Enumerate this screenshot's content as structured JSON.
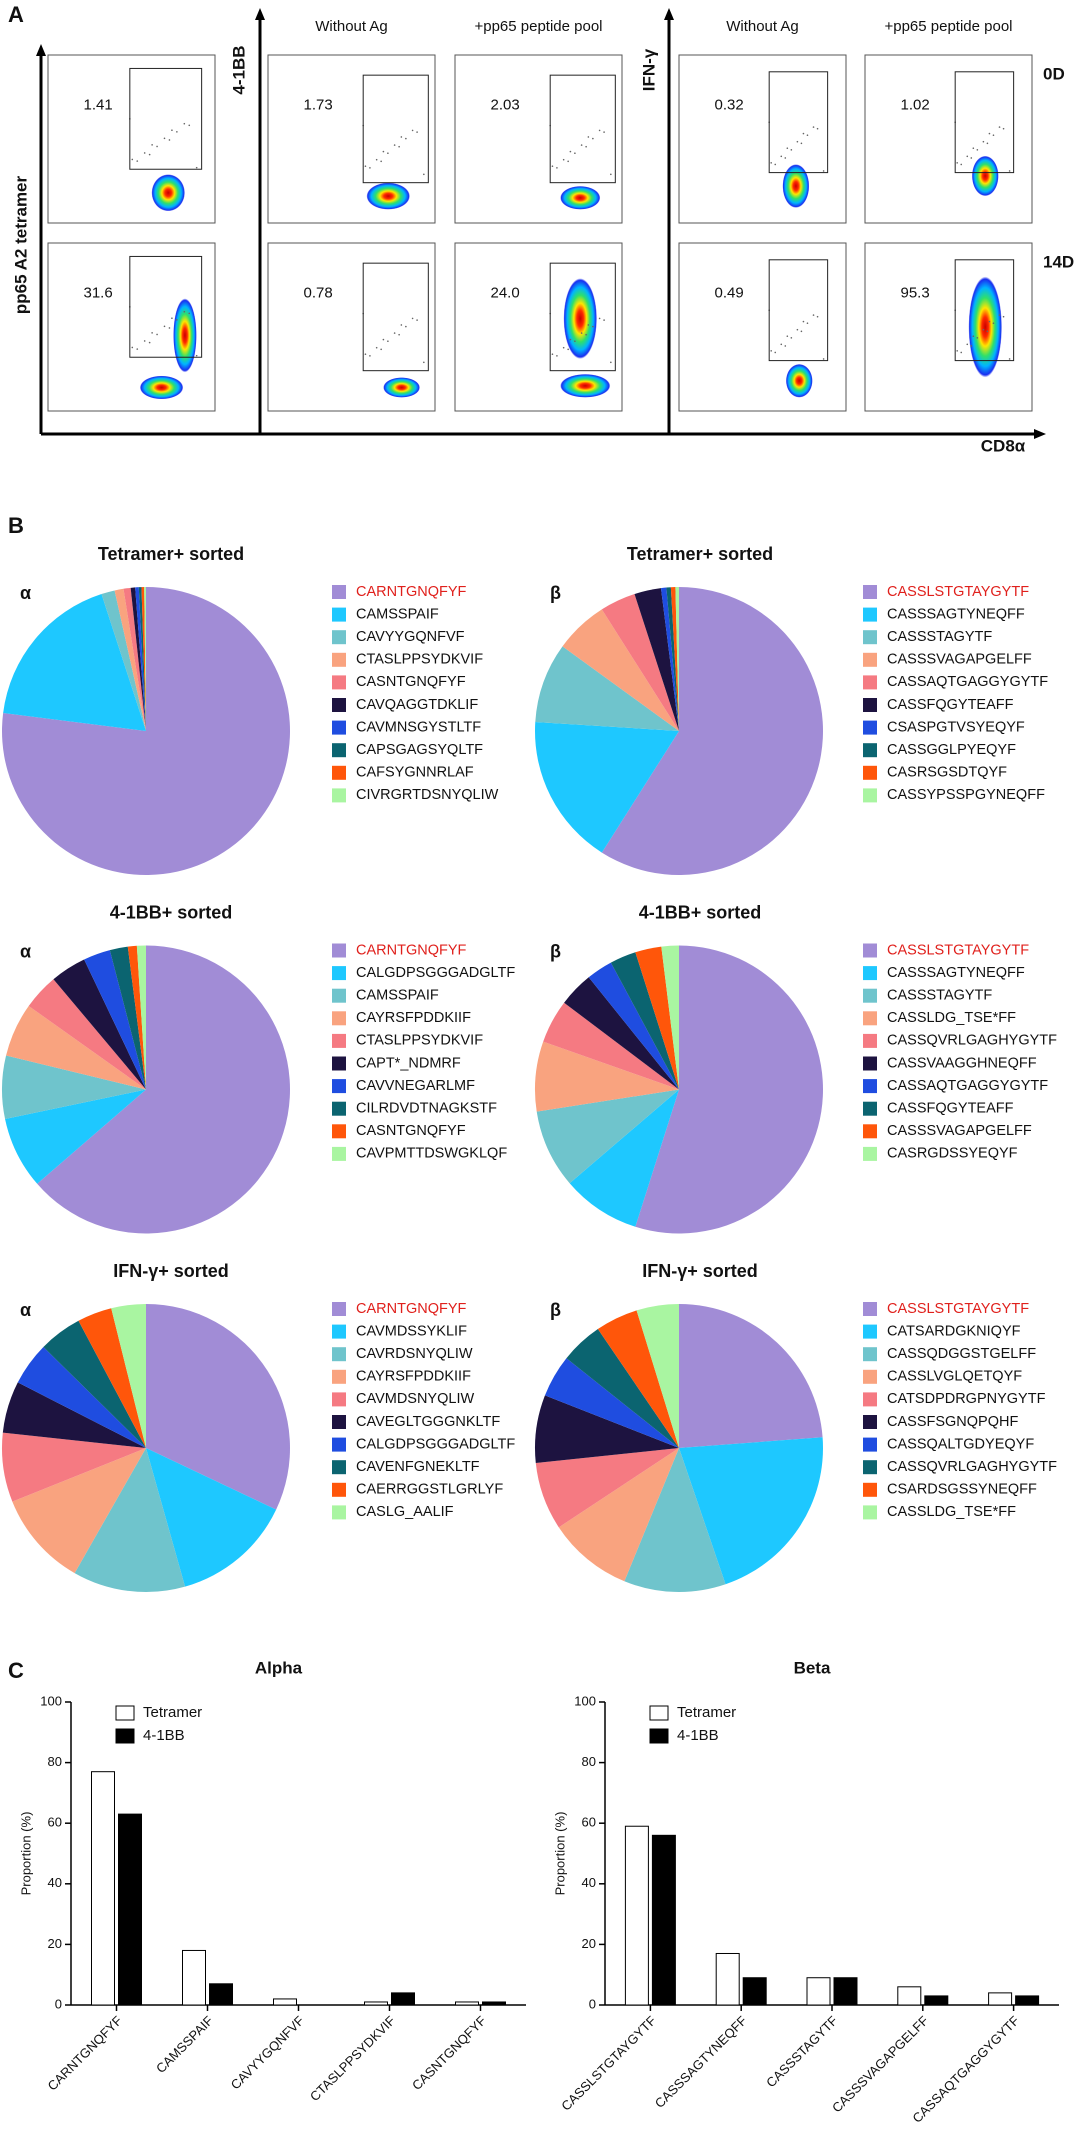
{
  "panel_a": {
    "label": "A",
    "y_axis_1": "pp65 A2 tetramer",
    "y_axis_2": "4-1BB",
    "y_axis_3": "IFN-γ",
    "x_axis": "CD8α",
    "column_headers": [
      "Without Ag",
      "+pp65 peptide pool",
      "Without Ag",
      "+pp65 peptide pool"
    ],
    "row_labels": [
      "0D",
      "14D"
    ],
    "gates": [
      [
        "1.41",
        "1.73",
        "2.03",
        "0.32",
        "1.02"
      ],
      [
        "31.6",
        "0.78",
        "24.0",
        "0.49",
        "95.3"
      ]
    ]
  },
  "panel_b": {
    "label": "B"
  },
  "panel_c": {
    "label": "C"
  },
  "chart_data": [
    {
      "type": "pie",
      "title": "Tetramer+ sorted",
      "subtitle": "α",
      "categories": [
        "CARNTGNQFYF",
        "CAMSSPAIF",
        "CAVYYGQNFVF",
        "CTASLPPSYDKVIF",
        "CASNTGNQFYF",
        "CAVQAGGTDKLIF",
        "CAVMNSGYSTLTF",
        "CAPSGAGSYQLTF",
        "CAFSYGNNRLAF",
        "CIVRGRTDSNYQLIW"
      ],
      "values": [
        77,
        18,
        1.5,
        1,
        0.8,
        0.5,
        0.4,
        0.3,
        0.3,
        0.2
      ],
      "colors": [
        "#a18cd6",
        "#1ec8ff",
        "#6fc4cc",
        "#f9a37f",
        "#f57a82",
        "#1d1340",
        "#1f4de0",
        "#0b6470",
        "#ff560a",
        "#a9f5a1"
      ]
    },
    {
      "type": "pie",
      "title": "Tetramer+ sorted",
      "subtitle": "β",
      "categories": [
        "CASSLSTGTAYGYTF",
        "CASSSAGTYNEQFF",
        "CASSSTAGYTF",
        "CASSSVAGAPGELFF",
        "CASSAQTGAGGYGYTF",
        "CASSFQGYTEAFF",
        "CSASPGTVSYEQYF",
        "CASSGGLPYEQYF",
        "CASRSGSDTQYF",
        "CASSYPSSPGYNEQFF"
      ],
      "values": [
        59,
        17,
        9,
        6,
        4,
        3,
        0.6,
        0.5,
        0.5,
        0.4
      ],
      "colors": [
        "#a18cd6",
        "#1ec8ff",
        "#6fc4cc",
        "#f9a37f",
        "#f57a82",
        "#1d1340",
        "#1f4de0",
        "#0b6470",
        "#ff560a",
        "#a9f5a1"
      ]
    },
    {
      "type": "pie",
      "title": "4-1BB+ sorted",
      "subtitle": "α",
      "categories": [
        "CARNTGNQFYF",
        "CALGDPSGGGADGLTF",
        "CAMSSPAIF",
        "CAYRSFPDDKIIF",
        "CTASLPPSYDKVIF",
        "CAPT*_NDMRF",
        "CAVVNEGARLMF",
        "CILRDVDTNAGKSTF",
        "CASNTGNQFYF",
        "CAVPMTTDSWGKLQF"
      ],
      "values": [
        63,
        8,
        7,
        6,
        4,
        4,
        3,
        2,
        1,
        1
      ],
      "colors": [
        "#a18cd6",
        "#1ec8ff",
        "#6fc4cc",
        "#f9a37f",
        "#f57a82",
        "#1d1340",
        "#1f4de0",
        "#0b6470",
        "#ff560a",
        "#a9f5a1"
      ]
    },
    {
      "type": "pie",
      "title": "4-1BB+ sorted",
      "subtitle": "β",
      "categories": [
        "CASSLSTGTAYGYTF",
        "CASSSAGTYNEQFF",
        "CASSSTAGYTF",
        "CASSLDG_TSE*FF",
        "CASSQVRLGAGHYGYTF",
        "CASSVAAGGHNEQFF",
        "CASSAQTGAGGYGYTF",
        "CASSFQGYTEAFF",
        "CASSSVAGAPGELFF",
        "CASRGDSSYEQYF"
      ],
      "values": [
        56,
        9,
        9,
        8,
        5,
        4,
        3,
        3,
        3,
        2
      ],
      "colors": [
        "#a18cd6",
        "#1ec8ff",
        "#6fc4cc",
        "#f9a37f",
        "#f57a82",
        "#1d1340",
        "#1f4de0",
        "#0b6470",
        "#ff560a",
        "#a9f5a1"
      ]
    },
    {
      "type": "pie",
      "title": "IFN-γ+ sorted",
      "subtitle": "α",
      "categories": [
        "CARNTGNQFYF",
        "CAVMDSSYKLIF",
        "CAVRDSNYQLIW",
        "CAYRSFPDDKIIF",
        "CAVMDSNYQLIW",
        "CAVEGLTGGGNKLTF",
        "CALGDPSGGGADGLTF",
        "CAVENFGNEKLTF",
        "CAERRGGSTLGRLYF",
        "CASLG_AALIF"
      ],
      "values": [
        33,
        14,
        13,
        11,
        8,
        6,
        5,
        5,
        4,
        4
      ],
      "colors": [
        "#a18cd6",
        "#1ec8ff",
        "#6fc4cc",
        "#f9a37f",
        "#f57a82",
        "#1d1340",
        "#1f4de0",
        "#0b6470",
        "#ff560a",
        "#a9f5a1"
      ]
    },
    {
      "type": "pie",
      "title": "IFN-γ+ sorted",
      "subtitle": "β",
      "categories": [
        "CASSLSTGTAYGYTF",
        "CATSARDGKNIQYF",
        "CASSQDGGSTGELFF",
        "CASSLVGLQETQYF",
        "CATSDPDRGPNYGYTF",
        "CASSFSGNQPQHF",
        "CASSQALTGDYEQYF",
        "CASSQVRLGAGHYGYTF",
        "CSARDSGSSYNEQFF",
        "CASSLDG_TSE*FF"
      ],
      "values": [
        25,
        22,
        12,
        10,
        8,
        8,
        5,
        5,
        5,
        5
      ],
      "colors": [
        "#a18cd6",
        "#1ec8ff",
        "#6fc4cc",
        "#f9a37f",
        "#f57a82",
        "#1d1340",
        "#1f4de0",
        "#0b6470",
        "#ff560a",
        "#a9f5a1"
      ]
    },
    {
      "type": "bar",
      "title": "Alpha",
      "y_label": "Proportion (%)",
      "categories": [
        "CARNTGNQFYF",
        "CAMSSPAIF",
        "CAVYYGQNFVF",
        "CTASLPPSYDKVIF",
        "CASNTGNQFYF"
      ],
      "series": [
        {
          "name": "Tetramer",
          "color": "#ffffff",
          "values": [
            77,
            18,
            2,
            1,
            1
          ]
        },
        {
          "name": "4-1BB",
          "color": "#000000",
          "values": [
            63,
            7,
            0,
            4,
            1
          ]
        }
      ],
      "ylim": [
        0,
        100
      ],
      "yticks": [
        0,
        20,
        40,
        60,
        80,
        100
      ]
    },
    {
      "type": "bar",
      "title": "Beta",
      "y_label": "Proportion (%)",
      "categories": [
        "CASSLSTGTAYGYTF",
        "CASSSAGTYNEQFF",
        "CASSSTAGYTF",
        "CASSSVAGAPGELFF",
        "CASSAQTGAGGYGYTF"
      ],
      "series": [
        {
          "name": "Tetramer",
          "color": "#ffffff",
          "values": [
            59,
            17,
            9,
            6,
            4
          ]
        },
        {
          "name": "4-1BB",
          "color": "#000000",
          "values": [
            56,
            9,
            9,
            3,
            3
          ]
        }
      ],
      "ylim": [
        0,
        100
      ],
      "yticks": [
        0,
        20,
        40,
        60,
        80,
        100
      ]
    }
  ]
}
